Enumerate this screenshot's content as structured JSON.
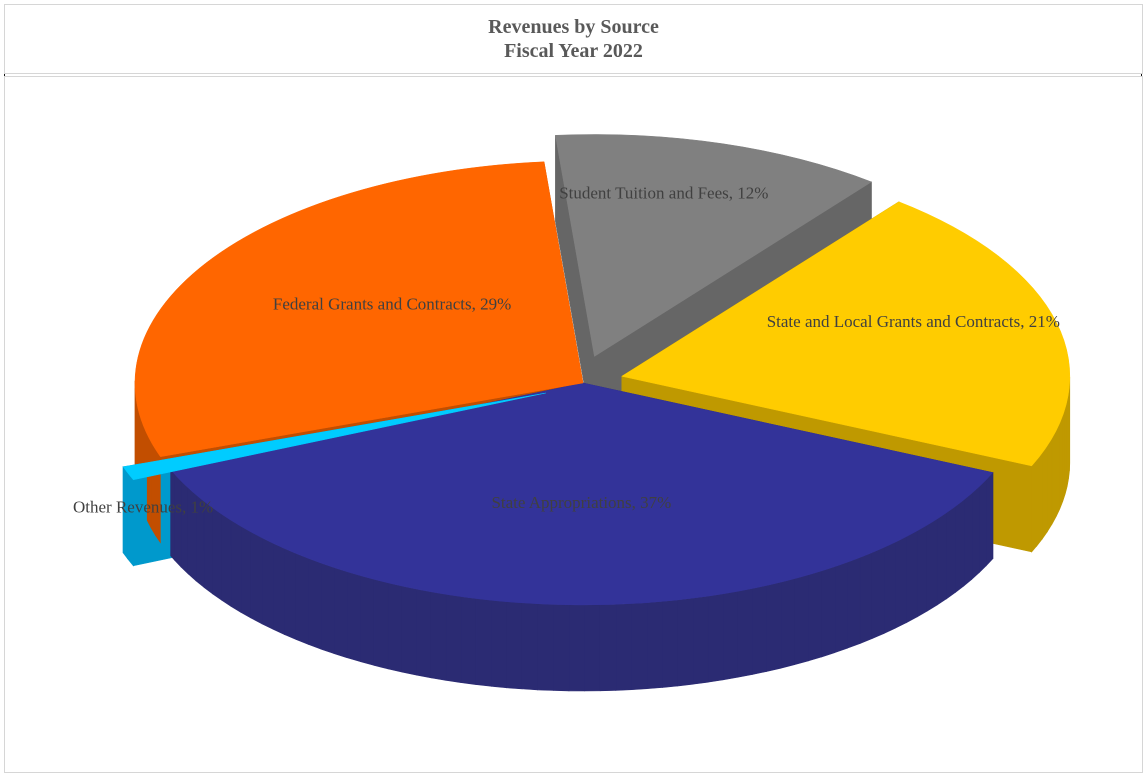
{
  "chart_data": {
    "type": "pie",
    "title": "Revenues by Source",
    "subtitle": "Fiscal Year 2022",
    "slices": [
      {
        "label": "Student Tuition and Fees, 12%",
        "category": "Student Tuition and Fees",
        "value": 12,
        "color": "#808080",
        "side_color": "#666666",
        "exploded": true
      },
      {
        "label": "State and Local Grants and Contracts, 21%",
        "category": "State and Local Grants and Contracts",
        "value": 21,
        "color": "#ffcc00",
        "side_color": "#bf9900",
        "exploded": true
      },
      {
        "label": "State Appropriations, 37%",
        "category": "State Appropriations",
        "value": 37,
        "color": "#333399",
        "side_color": "#2b2b73",
        "exploded": false
      },
      {
        "label": "Other Revenues, 1%",
        "category": "Other Revenues",
        "value": 1,
        "color": "#00ccff",
        "side_color": "#0099cc",
        "exploded": true
      },
      {
        "label": "Federal Grants and Contracts, 29%",
        "category": "Federal Grants and Contracts",
        "value": 29,
        "color": "#ff6600",
        "side_color": "#c24e00",
        "exploded": false
      }
    ],
    "legend": "none",
    "style": "3d-exploded"
  }
}
